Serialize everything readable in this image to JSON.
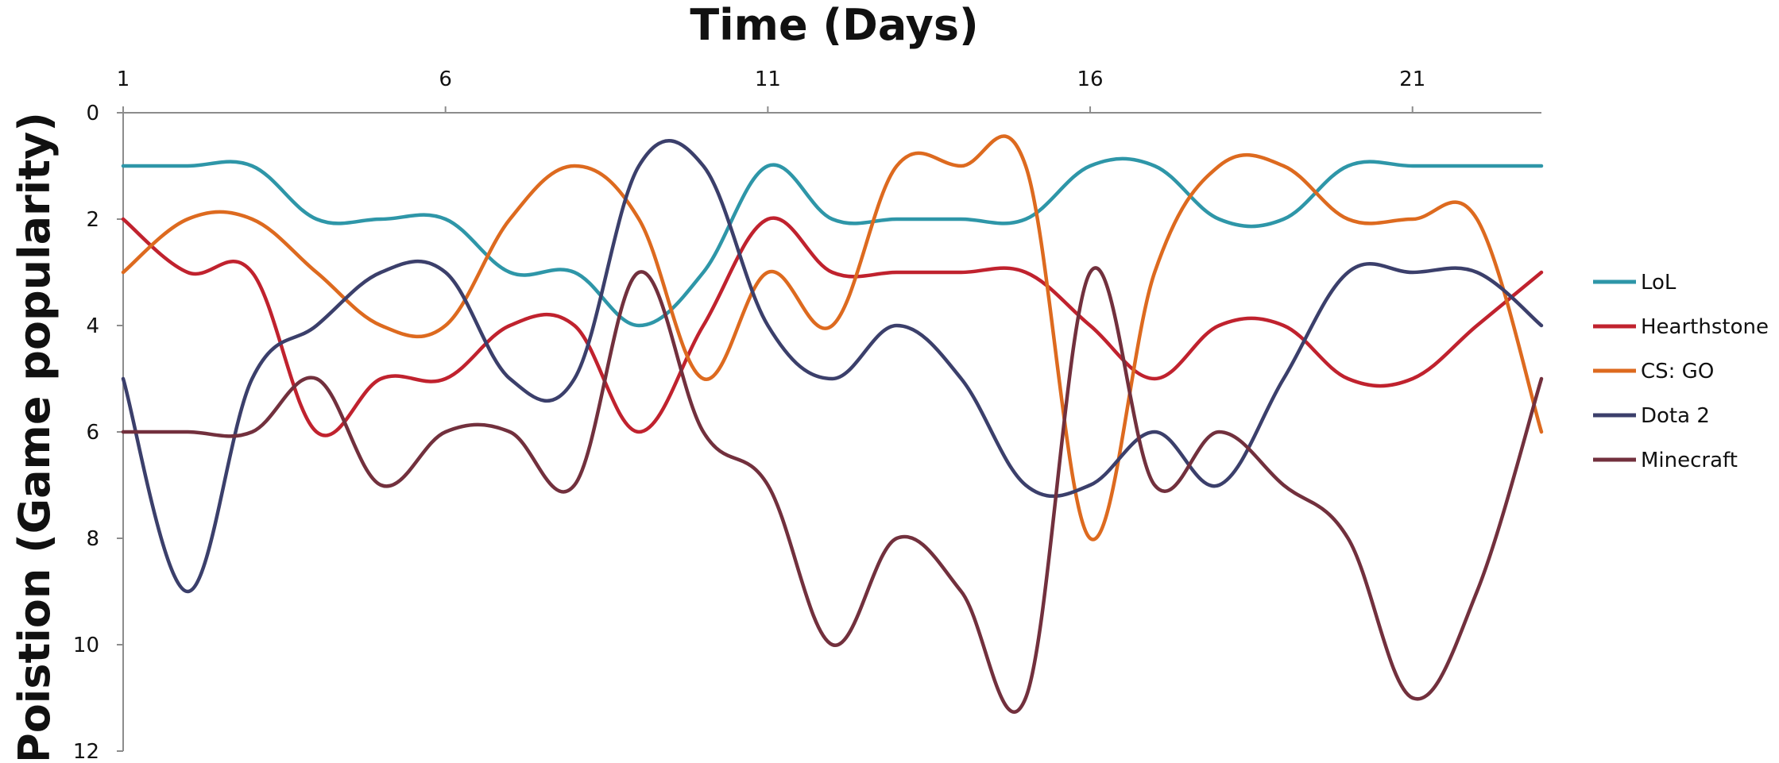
{
  "chart_data": {
    "type": "line",
    "title": "",
    "xlabel": "Time (Days)",
    "ylabel": "Poistion (Game popularity)",
    "x_axis_position": "top",
    "y_inverted": true,
    "xlim": [
      1,
      23
    ],
    "ylim": [
      0,
      12
    ],
    "x_ticks": [
      1,
      6,
      11,
      16,
      21
    ],
    "y_ticks": [
      0,
      2,
      4,
      6,
      8,
      10,
      12
    ],
    "grid": false,
    "legend_position": "right",
    "x": [
      1,
      2,
      3,
      4,
      5,
      6,
      7,
      8,
      9,
      10,
      11,
      12,
      13,
      14,
      15,
      16,
      17,
      18,
      19,
      20,
      21,
      22,
      23
    ],
    "series": [
      {
        "name": "LoL",
        "color": "#2e96a8",
        "values": [
          1,
          1,
          1,
          2,
          2,
          2,
          3,
          3,
          4,
          3,
          1,
          2,
          2,
          2,
          2,
          1,
          1,
          2,
          2,
          1,
          1,
          1,
          1
        ]
      },
      {
        "name": "Hearthstone",
        "color": "#c0222e",
        "values": [
          2,
          3,
          3,
          6,
          5,
          5,
          4,
          4,
          6,
          4,
          2,
          3,
          3,
          3,
          3,
          4,
          5,
          4,
          4,
          5,
          5,
          4,
          3
        ]
      },
      {
        "name": "CS: GO",
        "color": "#dd6a1f",
        "values": [
          3,
          2,
          2,
          3,
          4,
          4,
          2,
          1,
          2,
          5,
          3,
          4,
          1,
          1,
          1,
          8,
          3,
          1,
          1,
          2,
          2,
          2,
          6
        ]
      },
      {
        "name": "Dota 2",
        "color": "#3b3f6b",
        "values": [
          5,
          9,
          5,
          4,
          3,
          3,
          5,
          5,
          1,
          1,
          4,
          5,
          4,
          5,
          7,
          7,
          6,
          7,
          5,
          3,
          3,
          3,
          4
        ]
      },
      {
        "name": "Minecraft",
        "color": "#72303d",
        "values": [
          6,
          6,
          6,
          5,
          7,
          6,
          6,
          7,
          3,
          6,
          7,
          10,
          8,
          9,
          11,
          3,
          7,
          6,
          7,
          8,
          11,
          9,
          5
        ]
      }
    ]
  }
}
